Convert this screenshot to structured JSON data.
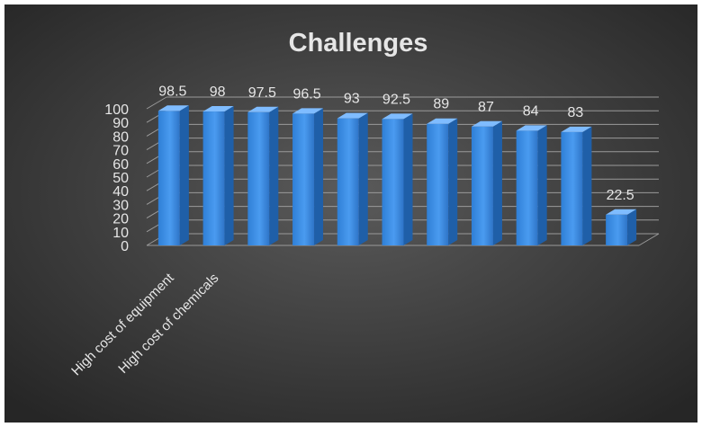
{
  "chart_data": {
    "type": "bar",
    "title": "Challenges",
    "xlabel": "",
    "ylabel": "",
    "ylim": [
      0,
      100
    ],
    "y_ticks": [
      0,
      10,
      20,
      30,
      40,
      50,
      60,
      70,
      80,
      90,
      100
    ],
    "grid": true,
    "legend": "none",
    "style": "3d-column",
    "categories": [
      "High cost of equipment",
      "High cost of chemicals",
      "",
      "",
      "",
      "",
      "",
      "",
      "",
      "",
      ""
    ],
    "values": [
      98.5,
      98,
      97.5,
      96.5,
      93,
      92.5,
      89,
      87,
      84,
      83,
      22.5
    ],
    "colors": {
      "bar_front": "#3c8ce0",
      "bar_side": "#1f5fa8",
      "bar_top": "#7fbcff",
      "background_light": "#5a5a5a",
      "background_dark": "#262626",
      "text": "#e6e6e6",
      "grid": "#9a9a9a"
    }
  }
}
